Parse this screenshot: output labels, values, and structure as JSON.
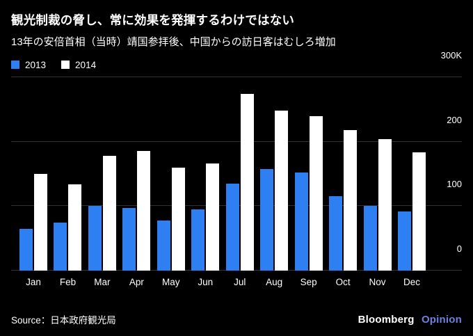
{
  "header": {
    "title": "観光制裁の脅し、常に効果を発揮するわけではない",
    "subtitle": "13年の安倍首相（当時）靖国参拝後、中国からの訪日客はむしろ増加"
  },
  "colors": {
    "series_2013": "#2d7ff2",
    "series_2014": "#ffffff",
    "gridline": "#333333",
    "background": "#000000",
    "brand_opinion": "#6b82e0"
  },
  "chart_data": {
    "type": "bar",
    "title": "観光制裁の脅し、常に効果を発揮するわけではない",
    "subtitle": "13年の安倍首相（当時）靖国参拝後、中国からの訪日客はむしろ増加",
    "categories": [
      "Jan",
      "Feb",
      "Mar",
      "Apr",
      "May",
      "Jun",
      "Jul",
      "Aug",
      "Sep",
      "Oct",
      "Nov",
      "Dec"
    ],
    "series": [
      {
        "name": "2013",
        "color": "#2d7ff2",
        "values": [
          65,
          74,
          100,
          97,
          78,
          95,
          135,
          158,
          152,
          116,
          100,
          92
        ]
      },
      {
        "name": "2014",
        "color": "#ffffff",
        "values": [
          150,
          134,
          178,
          186,
          160,
          166,
          274,
          248,
          240,
          218,
          204,
          184
        ]
      }
    ],
    "xlabel": "",
    "ylabel": "",
    "ylim": [
      0,
      300
    ],
    "yticks": [
      {
        "value": 0,
        "label": "0"
      },
      {
        "value": 100,
        "label": "100"
      },
      {
        "value": 200,
        "label": "200"
      },
      {
        "value": 300,
        "label": "300K"
      }
    ],
    "grid": true,
    "legend_position": "top-left",
    "units": "thousands of visitors"
  },
  "footer": {
    "source": "Source：日本政府観光局",
    "brand": "Bloomberg",
    "brand_suffix": "Opinion"
  }
}
